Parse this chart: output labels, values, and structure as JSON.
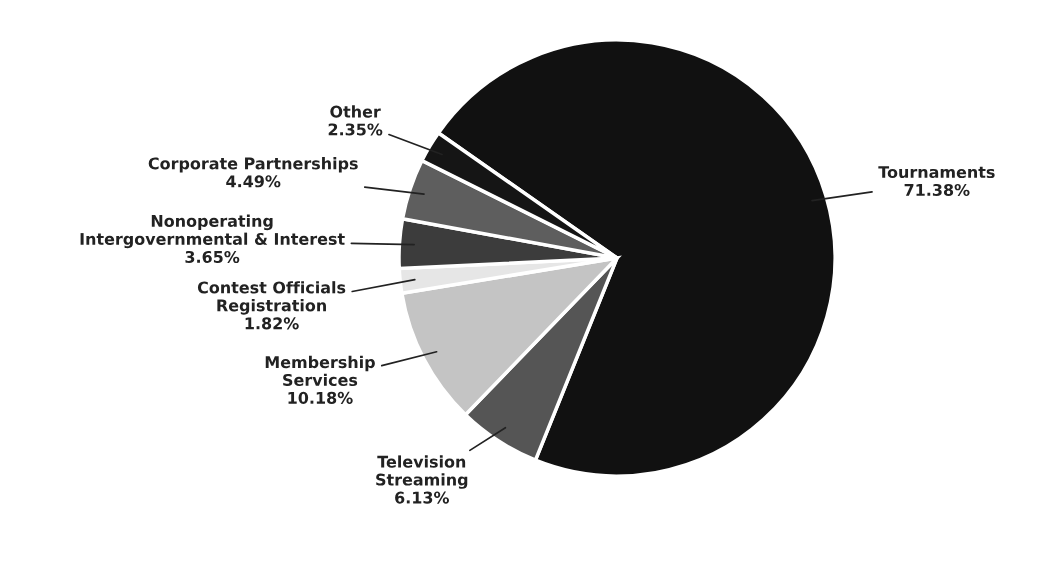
{
  "chart_data": {
    "type": "pie",
    "categories": [
      "Tournaments",
      "Television\nStreaming",
      "Membership\nServices",
      "Contest Officials\nRegistration",
      "Nonoperating\nIntergovernmental & Interest",
      "Corporate Partnerships",
      "Other"
    ],
    "values": [
      71.38,
      6.13,
      10.18,
      1.82,
      3.65,
      4.49,
      2.35
    ],
    "value_labels": [
      "71.38%",
      "6.13%",
      "10.18%",
      "1.82%",
      "3.65%",
      "4.49%",
      "2.35%"
    ],
    "colors": [
      "#111111",
      "#555555",
      "#c4c4c4",
      "#e6e6e6",
      "#3c3c3c",
      "#5e5e5e",
      "#151515"
    ]
  }
}
